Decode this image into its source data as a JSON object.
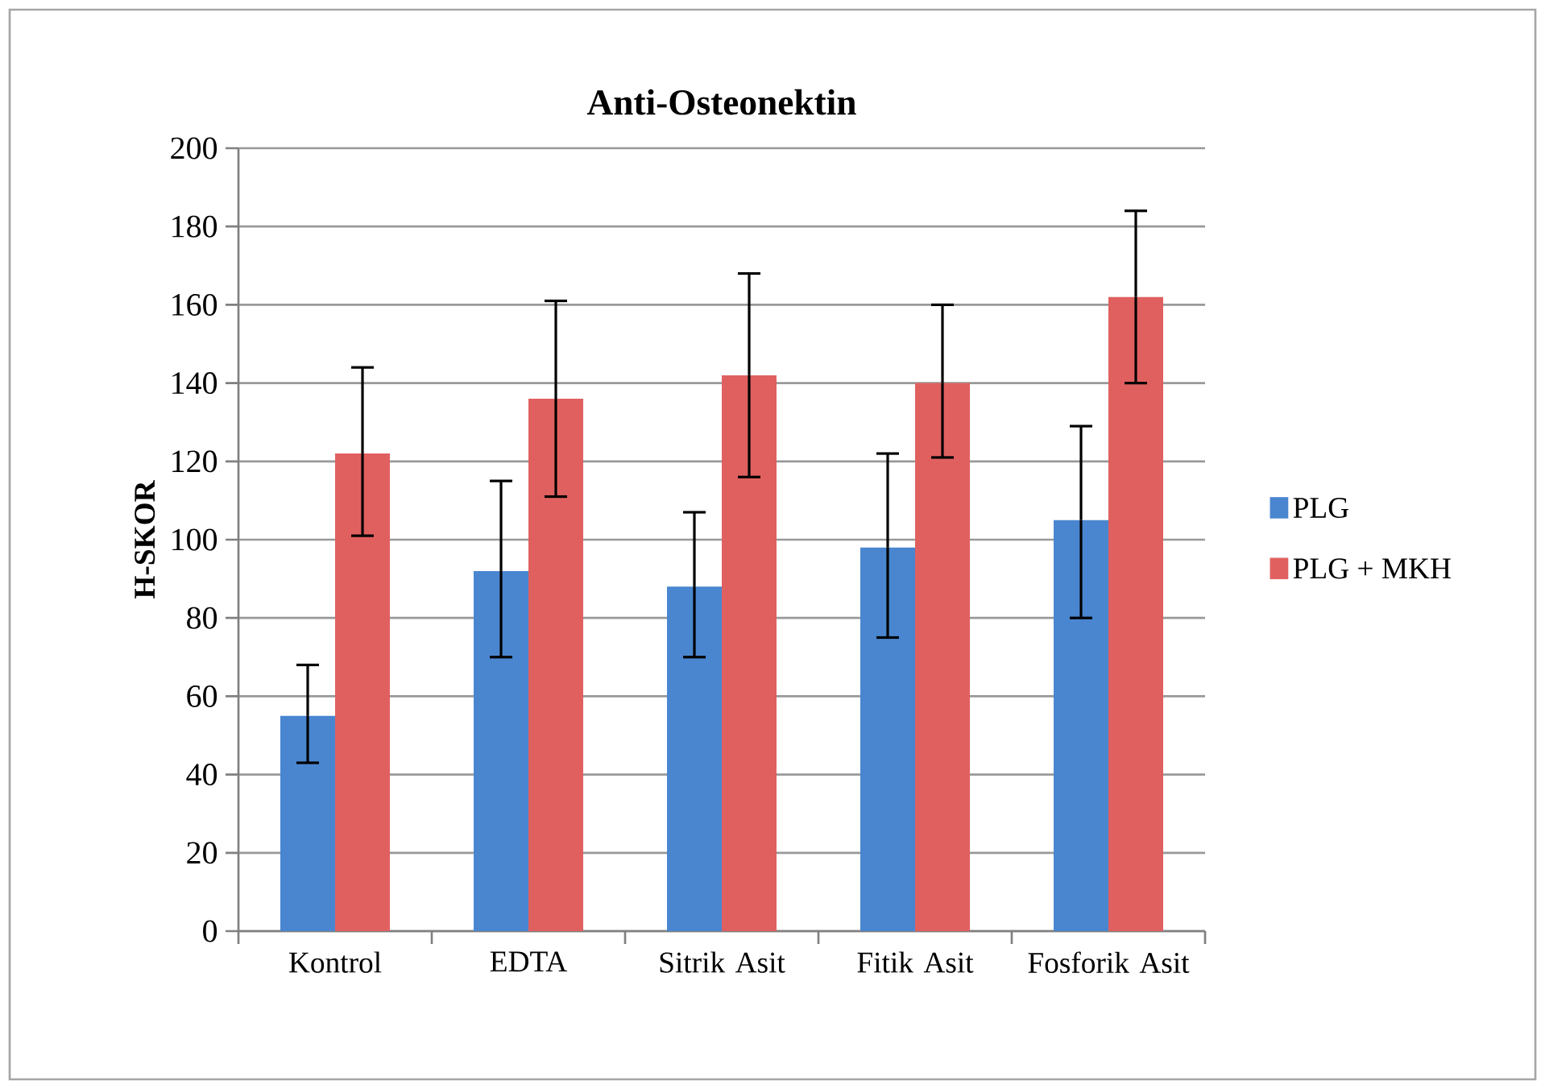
{
  "chart_data": {
    "type": "bar",
    "title": "Anti-Osteonektin",
    "ylabel": "H-SKOR",
    "categories": [
      "Kontrol",
      "EDTA",
      "Sitrik Asit",
      "Fitik Asit",
      "Fosforik Asit"
    ],
    "series": [
      {
        "name": "PLG",
        "color": "#4a86d0",
        "values": [
          55,
          92,
          88,
          98,
          105
        ],
        "errors": [
          [
            43,
            68
          ],
          [
            70,
            115
          ],
          [
            70,
            107
          ],
          [
            75,
            122
          ],
          [
            80,
            129
          ]
        ]
      },
      {
        "name": "PLG + MKH",
        "color": "#e06060",
        "values": [
          122,
          136,
          142,
          140,
          162
        ],
        "errors": [
          [
            101,
            144
          ],
          [
            111,
            161
          ],
          [
            116,
            168
          ],
          [
            121,
            160
          ],
          [
            140,
            184
          ]
        ]
      }
    ],
    "ylim": [
      0,
      200
    ],
    "yticks": [
      0,
      20,
      40,
      60,
      80,
      100,
      120,
      140,
      160,
      180,
      200
    ],
    "grid": "y",
    "legend": "right"
  }
}
